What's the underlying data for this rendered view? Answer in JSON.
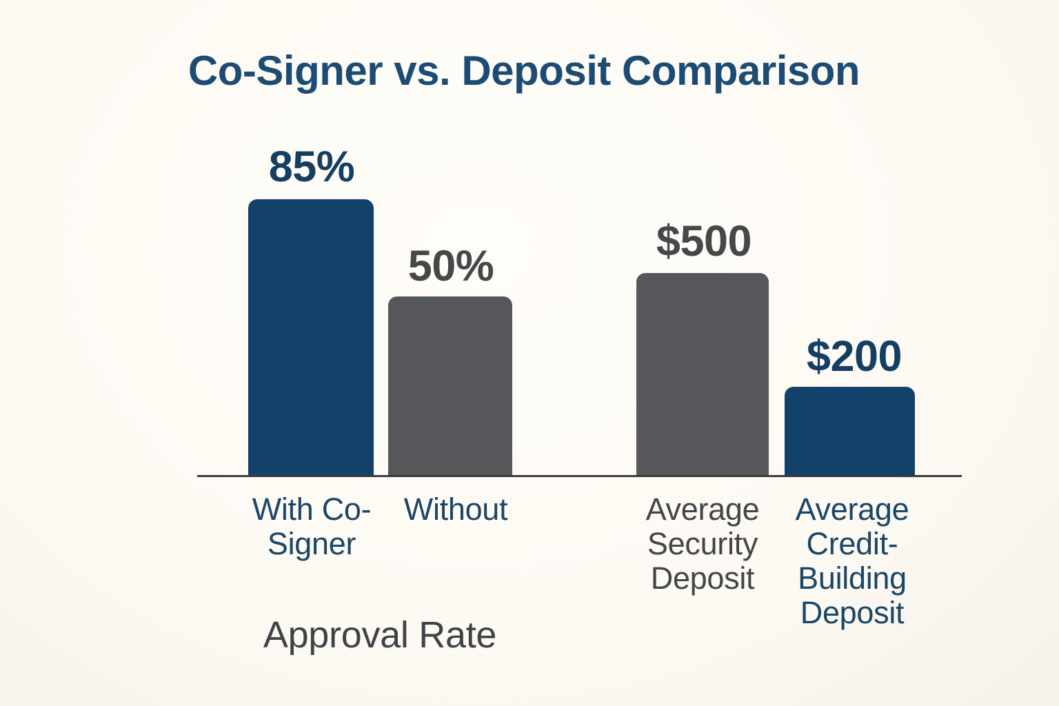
{
  "title": "Co-Signer vs. Deposit Comparison",
  "colors": {
    "background": "#fdfaf4",
    "bar_blue": "#14416a",
    "bar_gray": "#56575a",
    "title_text": "#1c4c74",
    "value_text_blue": "#153e63",
    "value_text_gray": "#454749",
    "category_text_blue": "#1b4668",
    "category_text_gray": "#434649",
    "axis_line": "#3a3c3e"
  },
  "chart_data": {
    "type": "bar",
    "title": "Co-Signer vs. Deposit Comparison",
    "categories": [
      "With Co-Signer",
      "Without",
      "Average Security Deposit",
      "Average Credit-Building Deposit"
    ],
    "values": [
      85,
      50,
      500,
      200
    ],
    "value_labels": [
      "85%",
      "50%",
      "$500",
      "$200"
    ],
    "group_axis_label": "Approval Rate",
    "xlabel": "",
    "ylabel": "",
    "legend": false,
    "grid": false,
    "axis_line": true,
    "bars": [
      {
        "category": "With Co-Signer",
        "value": 85,
        "value_label": "85%",
        "unit": "percent",
        "color": "#14416a",
        "color_name": "blue"
      },
      {
        "category": "Without",
        "value": 50,
        "value_label": "50%",
        "unit": "percent",
        "color": "#56575a",
        "color_name": "gray"
      },
      {
        "category": "Average Security Deposit",
        "value": 500,
        "value_label": "$500",
        "unit": "USD",
        "color": "#56575a",
        "color_name": "gray"
      },
      {
        "category": "Average Credit-Building Deposit",
        "value": 200,
        "value_label": "$200",
        "unit": "USD",
        "color": "#14416a",
        "color_name": "blue"
      }
    ]
  }
}
